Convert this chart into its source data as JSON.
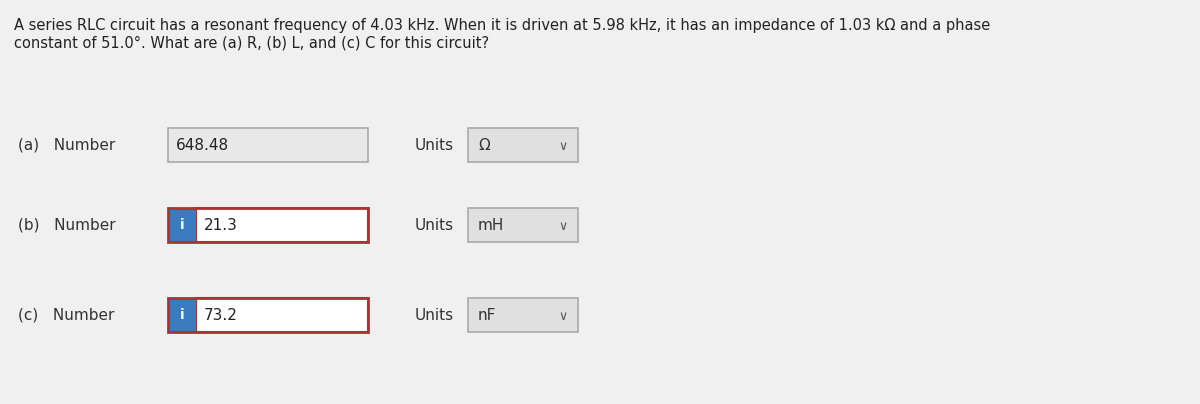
{
  "bg_color": "#f0f0f0",
  "title_line1": "A series RLC circuit has a resonant frequency of 4.03 kHz. When it is driven at 5.98 kHz, it has an impedance of 1.03 kΩ and a phase",
  "title_line2": "constant of 51.0°. What are (a) R, (b) L, and (c) C for this circuit?",
  "rows": [
    {
      "label": "(a)   Number",
      "value": "648.48",
      "has_info": false,
      "units_label": "Units",
      "units_value": "Ω",
      "value_box_border": "#aaaaaa",
      "units_box_border": "#aaaaaa",
      "info_color": null,
      "value_box_fill": "#e8e8e8"
    },
    {
      "label": "(b)   Number",
      "value": "21.3",
      "has_info": true,
      "units_label": "Units",
      "units_value": "mH",
      "value_box_border": "#aa3333",
      "units_box_border": "#aaaaaa",
      "info_color": "#3a7abf",
      "value_box_fill": "#ffffff"
    },
    {
      "label": "(c)   Number",
      "value": "73.2",
      "has_info": true,
      "units_label": "Units",
      "units_value": "nF",
      "value_box_border": "#aa3333",
      "units_box_border": "#aaaaaa",
      "info_color": "#3a7abf",
      "value_box_fill": "#ffffff"
    }
  ],
  "font_size_title": 10.5,
  "font_size_labels": 11,
  "font_size_values": 11,
  "font_size_units": 11
}
